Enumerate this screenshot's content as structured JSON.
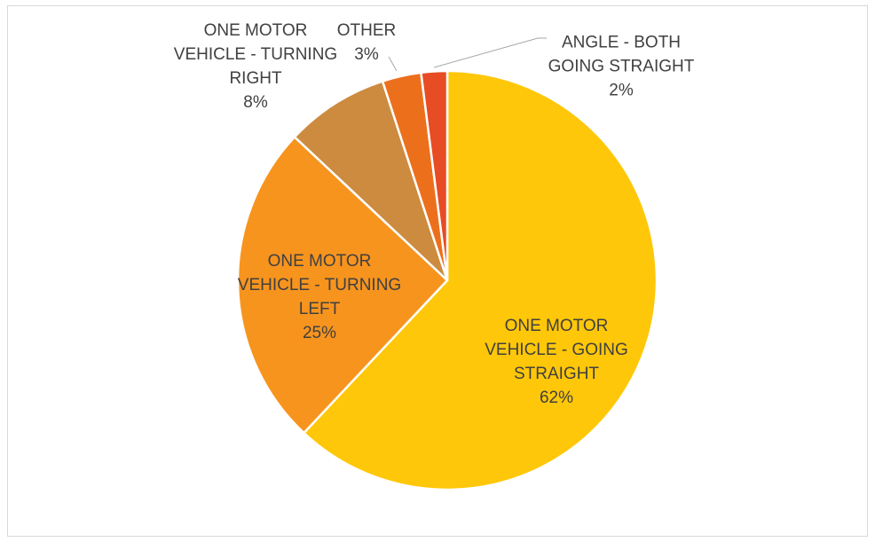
{
  "chart_data": {
    "type": "pie",
    "categories": [
      "ONE MOTOR VEHICLE - GOING STRAIGHT",
      "ONE MOTOR VEHICLE - TURNING LEFT",
      "ONE MOTOR VEHICLE - TURNING RIGHT",
      "OTHER",
      "ANGLE - BOTH GOING STRAIGHT"
    ],
    "values": [
      62,
      25,
      8,
      3,
      2
    ],
    "value_labels": [
      "62%",
      "25%",
      "8%",
      "3%",
      "2%"
    ],
    "colors": [
      "#FFC709",
      "#F7941E",
      "#CD8B40",
      "#EC701C",
      "#E74C24"
    ]
  }
}
